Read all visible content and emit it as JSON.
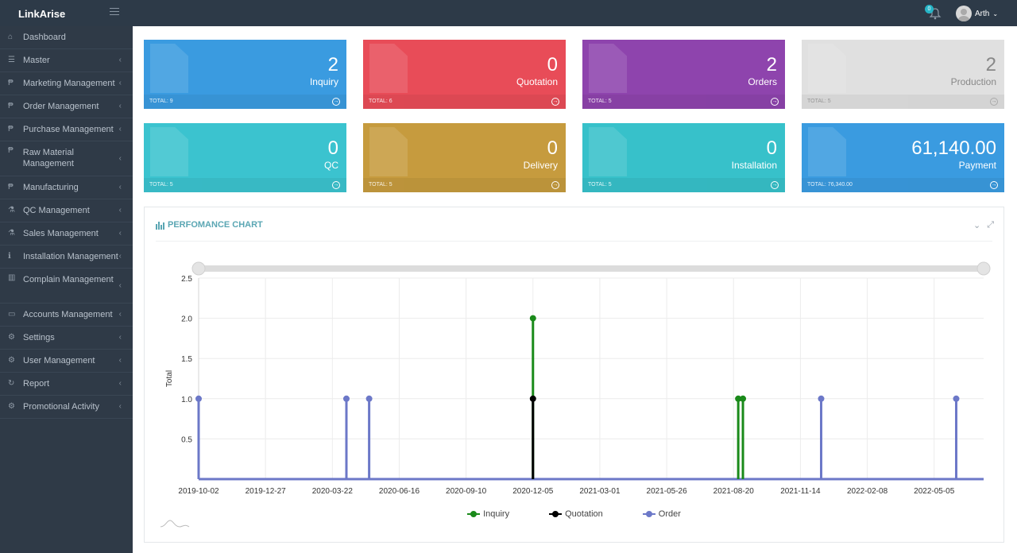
{
  "app": {
    "brand": "LinkArise",
    "user_name": "Arth",
    "notification_count": "0"
  },
  "sidebar": {
    "items": [
      {
        "label": "Dashboard",
        "icon": "home-icon",
        "has_children": false
      },
      {
        "label": "Master",
        "icon": "list-icon",
        "has_children": true
      },
      {
        "label": "Marketing Management",
        "icon": "paypal-icon",
        "has_children": true
      },
      {
        "label": "Order Management",
        "icon": "paypal-icon",
        "has_children": true
      },
      {
        "label": "Purchase Management",
        "icon": "paypal-icon",
        "has_children": true
      },
      {
        "label": "Raw Material Management",
        "icon": "paypal-icon",
        "has_children": true
      },
      {
        "label": "Manufacturing",
        "icon": "paypal-icon",
        "has_children": true
      },
      {
        "label": "QC Management",
        "icon": "flask-icon",
        "has_children": true
      },
      {
        "label": "Sales Management",
        "icon": "flask-icon",
        "has_children": true
      },
      {
        "label": "Installation Management",
        "icon": "info-icon",
        "has_children": true
      },
      {
        "label": "Complain Management",
        "icon": "chart-icon",
        "has_children": true
      },
      {
        "label": "Accounts Management",
        "icon": "card-icon",
        "has_children": true
      },
      {
        "label": "Settings",
        "icon": "gear-icon",
        "has_children": true
      },
      {
        "label": "User Management",
        "icon": "gear-icon",
        "has_children": true
      },
      {
        "label": "Report",
        "icon": "refresh-icon",
        "has_children": true
      },
      {
        "label": "Promotional Activity",
        "icon": "gear-icon",
        "has_children": true
      }
    ]
  },
  "cards": [
    {
      "value": "2",
      "label": "Inquiry",
      "total": "TOTAL: 9",
      "color": "#3a9be0"
    },
    {
      "value": "0",
      "label": "Quotation",
      "total": "TOTAL: 6",
      "color": "#e84c58"
    },
    {
      "value": "2",
      "label": "Orders",
      "total": "TOTAL: 5",
      "color": "#8e44ad"
    },
    {
      "value": "2",
      "label": "Production",
      "total": "TOTAL: 5",
      "color": "#e0e0e0"
    },
    {
      "value": "0",
      "label": "QC",
      "total": "TOTAL: 5",
      "color": "#3bc3cf"
    },
    {
      "value": "0",
      "label": "Delivery",
      "total": "TOTAL: 5",
      "color": "#c69b3e"
    },
    {
      "value": "0",
      "label": "Installation",
      "total": "TOTAL: 5",
      "color": "#37c1ca"
    },
    {
      "value": "61,140.00",
      "label": "Payment",
      "total": "TOTAL: 76,340.00",
      "color": "#3a9be0"
    }
  ],
  "panel": {
    "title": "PERFOMANCE CHART"
  },
  "chart_data": {
    "type": "line",
    "title": "PERFOMANCE CHART",
    "ylabel": "Total",
    "xlabel": "",
    "ylim": [
      0,
      2.5
    ],
    "yticks": [
      "0.5",
      "1.0",
      "1.5",
      "2.0",
      "2.5"
    ],
    "xticks": [
      "2019-10-02",
      "2019-12-27",
      "2020-03-22",
      "2020-06-16",
      "2020-09-10",
      "2020-12-05",
      "2021-03-01",
      "2021-05-26",
      "2021-08-20",
      "2021-11-14",
      "2022-02-08",
      "2022-05-05"
    ],
    "series": [
      {
        "name": "Inquiry",
        "color": "#1a8a1a",
        "points": [
          {
            "x": 5.0,
            "y": 2
          },
          {
            "x": 8.07,
            "y": 1
          },
          {
            "x": 8.14,
            "y": 1
          }
        ]
      },
      {
        "name": "Quotation",
        "color": "#000000",
        "points": [
          {
            "x": 5.0,
            "y": 1
          }
        ]
      },
      {
        "name": "Order",
        "color": "#6c78c8",
        "points": [
          {
            "x": 0.0,
            "y": 1
          },
          {
            "x": 2.21,
            "y": 1
          },
          {
            "x": 2.55,
            "y": 1
          },
          {
            "x": 9.31,
            "y": 1
          },
          {
            "x": 11.33,
            "y": 1
          }
        ]
      }
    ]
  }
}
